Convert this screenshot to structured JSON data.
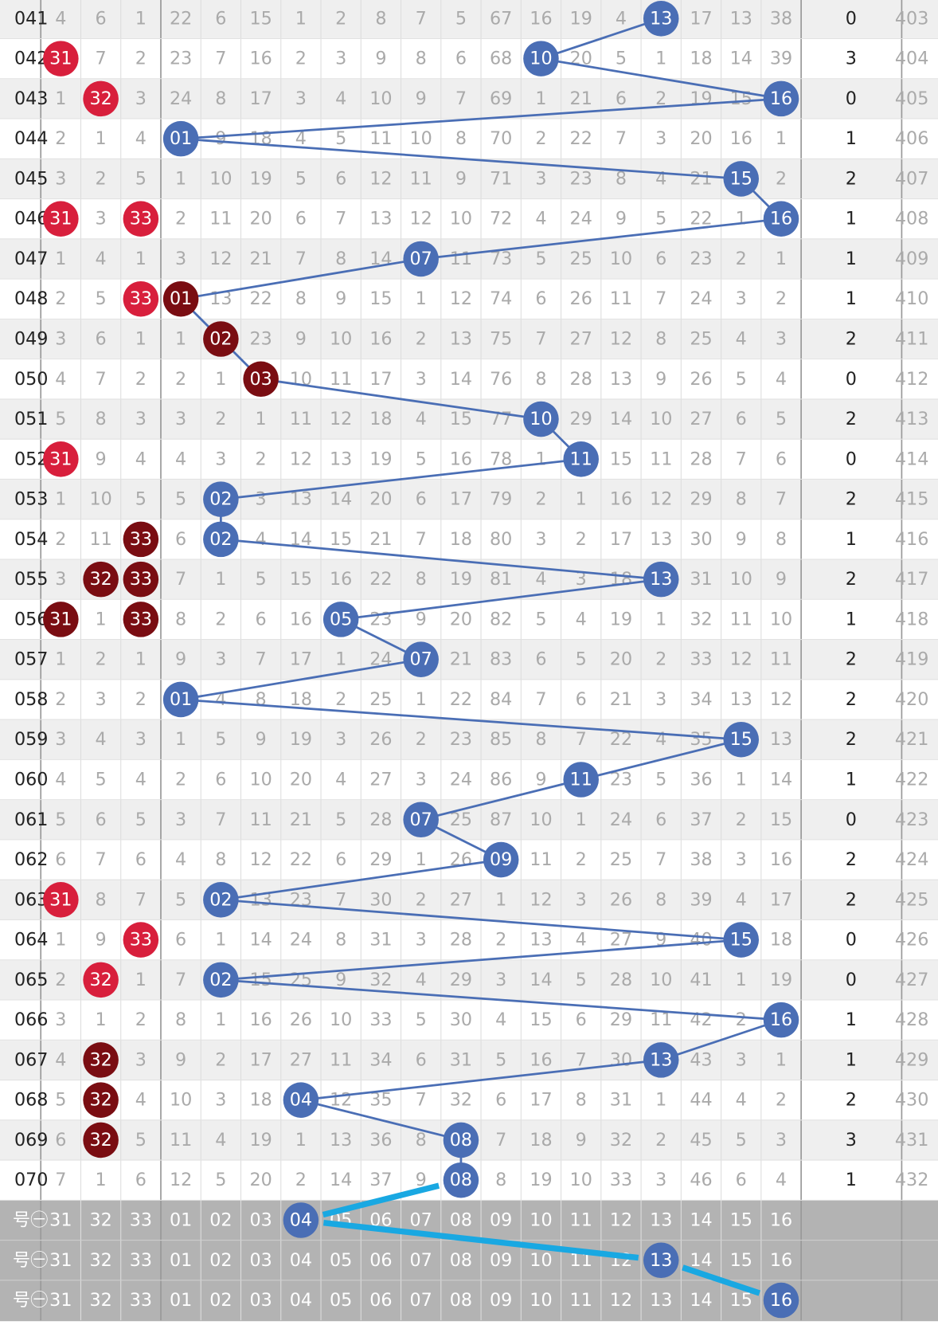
{
  "rows": [
    {
      "period": "041",
      "front": [
        "4",
        "6",
        "1"
      ],
      "back": [
        "22",
        "6",
        "15",
        "1",
        "2",
        "8",
        "7",
        "5",
        "67",
        "16",
        "19",
        "4",
        {
          "text": "13",
          "color": "#4a6eb5"
        },
        "17",
        "13",
        "38"
      ],
      "count": "0",
      "tail": "403"
    },
    {
      "period": "042",
      "front": [
        {
          "text": "31",
          "color": "#d81f3c"
        },
        "7",
        "2"
      ],
      "back": [
        "23",
        "7",
        "16",
        "2",
        "3",
        "9",
        "8",
        "6",
        "68",
        {
          "text": "10",
          "color": "#4a6eb5"
        },
        "20",
        "5",
        "1",
        "18",
        "14",
        "39"
      ],
      "count": "3",
      "tail": "404"
    },
    {
      "period": "043",
      "front": [
        "1",
        {
          "text": "32",
          "color": "#d81f3c"
        },
        "3"
      ],
      "back": [
        "24",
        "8",
        "17",
        "3",
        "4",
        "10",
        "9",
        "7",
        "69",
        "1",
        "21",
        "6",
        "2",
        "19",
        "15",
        {
          "text": "16",
          "color": "#4a6eb5"
        }
      ],
      "count": "0",
      "tail": "405"
    },
    {
      "period": "044",
      "front": [
        "2",
        "1",
        "4"
      ],
      "back": [
        {
          "text": "01",
          "color": "#4a6eb5"
        },
        "9",
        "18",
        "4",
        "5",
        "11",
        "10",
        "8",
        "70",
        "2",
        "22",
        "7",
        "3",
        "20",
        "16",
        "1"
      ],
      "count": "1",
      "tail": "406"
    },
    {
      "period": "045",
      "front": [
        "3",
        "2",
        "5"
      ],
      "back": [
        "1",
        "10",
        "19",
        "5",
        "6",
        "12",
        "11",
        "9",
        "71",
        "3",
        "23",
        "8",
        "4",
        "21",
        {
          "text": "15",
          "color": "#4a6eb5"
        },
        "2"
      ],
      "count": "2",
      "tail": "407"
    },
    {
      "period": "046",
      "front": [
        {
          "text": "31",
          "color": "#d81f3c"
        },
        "3",
        {
          "text": "33",
          "color": "#d81f3c"
        }
      ],
      "back": [
        "2",
        "11",
        "20",
        "6",
        "7",
        "13",
        "12",
        "10",
        "72",
        "4",
        "24",
        "9",
        "5",
        "22",
        "1",
        {
          "text": "16",
          "color": "#4a6eb5"
        }
      ],
      "count": "1",
      "tail": "408"
    },
    {
      "period": "047",
      "front": [
        "1",
        "4",
        "1"
      ],
      "back": [
        "3",
        "12",
        "21",
        "7",
        "8",
        "14",
        {
          "text": "07",
          "color": "#4a6eb5"
        },
        "11",
        "73",
        "5",
        "25",
        "10",
        "6",
        "23",
        "2",
        "1"
      ],
      "count": "1",
      "tail": "409"
    },
    {
      "period": "048",
      "front": [
        "2",
        "5",
        {
          "text": "33",
          "color": "#d81f3c"
        }
      ],
      "back": [
        {
          "text": "01",
          "color": "#7a0d12"
        },
        "13",
        "22",
        "8",
        "9",
        "15",
        "1",
        "12",
        "74",
        "6",
        "26",
        "11",
        "7",
        "24",
        "3",
        "2"
      ],
      "count": "1",
      "tail": "410"
    },
    {
      "period": "049",
      "front": [
        "3",
        "6",
        "1"
      ],
      "back": [
        "1",
        {
          "text": "02",
          "color": "#7a0d12"
        },
        "23",
        "9",
        "10",
        "16",
        "2",
        "13",
        "75",
        "7",
        "27",
        "12",
        "8",
        "25",
        "4",
        "3"
      ],
      "count": "2",
      "tail": "411"
    },
    {
      "period": "050",
      "front": [
        "4",
        "7",
        "2"
      ],
      "back": [
        "2",
        "1",
        {
          "text": "03",
          "color": "#7a0d12"
        },
        "10",
        "11",
        "17",
        "3",
        "14",
        "76",
        "8",
        "28",
        "13",
        "9",
        "26",
        "5",
        "4"
      ],
      "count": "0",
      "tail": "412"
    },
    {
      "period": "051",
      "front": [
        "5",
        "8",
        "3"
      ],
      "back": [
        "3",
        "2",
        "1",
        "11",
        "12",
        "18",
        "4",
        "15",
        "77",
        {
          "text": "10",
          "color": "#4a6eb5"
        },
        "29",
        "14",
        "10",
        "27",
        "6",
        "5"
      ],
      "count": "2",
      "tail": "413"
    },
    {
      "period": "052",
      "front": [
        {
          "text": "31",
          "color": "#d81f3c"
        },
        "9",
        "4"
      ],
      "back": [
        "4",
        "3",
        "2",
        "12",
        "13",
        "19",
        "5",
        "16",
        "78",
        "1",
        {
          "text": "11",
          "color": "#4a6eb5"
        },
        "15",
        "11",
        "28",
        "7",
        "6"
      ],
      "count": "0",
      "tail": "414"
    },
    {
      "period": "053",
      "front": [
        "1",
        "10",
        "5"
      ],
      "back": [
        "5",
        {
          "text": "02",
          "color": "#4a6eb5"
        },
        "3",
        "13",
        "14",
        "20",
        "6",
        "17",
        "79",
        "2",
        "1",
        "16",
        "12",
        "29",
        "8",
        "7"
      ],
      "count": "2",
      "tail": "415"
    },
    {
      "period": "054",
      "front": [
        "2",
        "11",
        {
          "text": "33",
          "color": "#7a0d12"
        }
      ],
      "back": [
        "6",
        {
          "text": "02",
          "color": "#4a6eb5"
        },
        "4",
        "14",
        "15",
        "21",
        "7",
        "18",
        "80",
        "3",
        "2",
        "17",
        "13",
        "30",
        "9",
        "8"
      ],
      "count": "1",
      "tail": "416"
    },
    {
      "period": "055",
      "front": [
        "3",
        {
          "text": "32",
          "color": "#7a0d12"
        },
        {
          "text": "33",
          "color": "#7a0d12"
        }
      ],
      "back": [
        "7",
        "1",
        "5",
        "15",
        "16",
        "22",
        "8",
        "19",
        "81",
        "4",
        "3",
        "18",
        {
          "text": "13",
          "color": "#4a6eb5"
        },
        "31",
        "10",
        "9"
      ],
      "count": "2",
      "tail": "417"
    },
    {
      "period": "056",
      "front": [
        {
          "text": "31",
          "color": "#7a0d12"
        },
        "1",
        {
          "text": "33",
          "color": "#7a0d12"
        }
      ],
      "back": [
        "8",
        "2",
        "6",
        "16",
        {
          "text": "05",
          "color": "#4a6eb5"
        },
        "23",
        "9",
        "20",
        "82",
        "5",
        "4",
        "19",
        "1",
        "32",
        "11",
        "10"
      ],
      "count": "1",
      "tail": "418"
    },
    {
      "period": "057",
      "front": [
        "1",
        "2",
        "1"
      ],
      "back": [
        "9",
        "3",
        "7",
        "17",
        "1",
        "24",
        {
          "text": "07",
          "color": "#4a6eb5"
        },
        "21",
        "83",
        "6",
        "5",
        "20",
        "2",
        "33",
        "12",
        "11"
      ],
      "count": "2",
      "tail": "419"
    },
    {
      "period": "058",
      "front": [
        "2",
        "3",
        "2"
      ],
      "back": [
        {
          "text": "01",
          "color": "#4a6eb5"
        },
        "4",
        "8",
        "18",
        "2",
        "25",
        "1",
        "22",
        "84",
        "7",
        "6",
        "21",
        "3",
        "34",
        "13",
        "12"
      ],
      "count": "2",
      "tail": "420"
    },
    {
      "period": "059",
      "front": [
        "3",
        "4",
        "3"
      ],
      "back": [
        "1",
        "5",
        "9",
        "19",
        "3",
        "26",
        "2",
        "23",
        "85",
        "8",
        "7",
        "22",
        "4",
        "35",
        {
          "text": "15",
          "color": "#4a6eb5"
        },
        "13"
      ],
      "count": "2",
      "tail": "421"
    },
    {
      "period": "060",
      "front": [
        "4",
        "5",
        "4"
      ],
      "back": [
        "2",
        "6",
        "10",
        "20",
        "4",
        "27",
        "3",
        "24",
        "86",
        "9",
        {
          "text": "11",
          "color": "#4a6eb5"
        },
        "23",
        "5",
        "36",
        "1",
        "14"
      ],
      "count": "1",
      "tail": "422"
    },
    {
      "period": "061",
      "front": [
        "5",
        "6",
        "5"
      ],
      "back": [
        "3",
        "7",
        "11",
        "21",
        "5",
        "28",
        {
          "text": "07",
          "color": "#4a6eb5"
        },
        "25",
        "87",
        "10",
        "1",
        "24",
        "6",
        "37",
        "2",
        "15"
      ],
      "count": "0",
      "tail": "423"
    },
    {
      "period": "062",
      "front": [
        "6",
        "7",
        "6"
      ],
      "back": [
        "4",
        "8",
        "12",
        "22",
        "6",
        "29",
        "1",
        "26",
        {
          "text": "09",
          "color": "#4a6eb5"
        },
        "11",
        "2",
        "25",
        "7",
        "38",
        "3",
        "16"
      ],
      "count": "2",
      "tail": "424"
    },
    {
      "period": "063",
      "front": [
        {
          "text": "31",
          "color": "#d81f3c"
        },
        "8",
        "7"
      ],
      "back": [
        "5",
        {
          "text": "02",
          "color": "#4a6eb5"
        },
        "13",
        "23",
        "7",
        "30",
        "2",
        "27",
        "1",
        "12",
        "3",
        "26",
        "8",
        "39",
        "4",
        "17"
      ],
      "count": "2",
      "tail": "425"
    },
    {
      "period": "064",
      "front": [
        "1",
        "9",
        {
          "text": "33",
          "color": "#d81f3c"
        }
      ],
      "back": [
        "6",
        "1",
        "14",
        "24",
        "8",
        "31",
        "3",
        "28",
        "2",
        "13",
        "4",
        "27",
        "9",
        "40",
        {
          "text": "15",
          "color": "#4a6eb5"
        },
        "18"
      ],
      "count": "0",
      "tail": "426"
    },
    {
      "period": "065",
      "front": [
        "2",
        {
          "text": "32",
          "color": "#d81f3c"
        },
        "1"
      ],
      "back": [
        "7",
        {
          "text": "02",
          "color": "#4a6eb5"
        },
        "15",
        "25",
        "9",
        "32",
        "4",
        "29",
        "3",
        "14",
        "5",
        "28",
        "10",
        "41",
        "1",
        "19"
      ],
      "count": "0",
      "tail": "427"
    },
    {
      "period": "066",
      "front": [
        "3",
        "1",
        "2"
      ],
      "back": [
        "8",
        "1",
        "16",
        "26",
        "10",
        "33",
        "5",
        "30",
        "4",
        "15",
        "6",
        "29",
        "11",
        "42",
        "2",
        {
          "text": "16",
          "color": "#4a6eb5"
        }
      ],
      "count": "1",
      "tail": "428"
    },
    {
      "period": "067",
      "front": [
        "4",
        {
          "text": "32",
          "color": "#7a0d12"
        },
        "3"
      ],
      "back": [
        "9",
        "2",
        "17",
        "27",
        "11",
        "34",
        "6",
        "31",
        "5",
        "16",
        "7",
        "30",
        {
          "text": "13",
          "color": "#4a6eb5"
        },
        "43",
        "3",
        "1"
      ],
      "count": "1",
      "tail": "429"
    },
    {
      "period": "068",
      "front": [
        "5",
        {
          "text": "32",
          "color": "#7a0d12"
        },
        "4"
      ],
      "back": [
        "10",
        "3",
        "18",
        {
          "text": "04",
          "color": "#4a6eb5"
        },
        "12",
        "35",
        "7",
        "32",
        "6",
        "17",
        "8",
        "31",
        "1",
        "44",
        "4",
        "2"
      ],
      "count": "2",
      "tail": "430"
    },
    {
      "period": "069",
      "front": [
        "6",
        {
          "text": "32",
          "color": "#7a0d12"
        },
        "5"
      ],
      "back": [
        "11",
        "4",
        "19",
        "1",
        "13",
        "36",
        "8",
        {
          "text": "08",
          "color": "#4a6eb5"
        },
        "7",
        "18",
        "9",
        "32",
        "2",
        "45",
        "5",
        "3"
      ],
      "count": "3",
      "tail": "431"
    },
    {
      "period": "070",
      "front": [
        "7",
        "1",
        "6"
      ],
      "back": [
        "12",
        "5",
        "20",
        "2",
        "14",
        "37",
        "9",
        {
          "text": "08",
          "color": "#4a6eb5"
        },
        "8",
        "19",
        "10",
        "33",
        "3",
        "46",
        "6",
        "4"
      ],
      "count": "1",
      "tail": "432"
    }
  ],
  "footer": [
    {
      "label": "号㊀",
      "cells": [
        "31",
        "32",
        "33",
        "01",
        "02",
        "03",
        {
          "text": "04",
          "color": "#4a6eb5"
        },
        "05",
        "06",
        "07",
        "08",
        "09",
        "10",
        "11",
        "12",
        "13",
        "14",
        "15",
        "16"
      ]
    },
    {
      "label": "号㊀",
      "cells": [
        "31",
        "32",
        "33",
        "01",
        "02",
        "03",
        "04",
        "05",
        "06",
        "07",
        "08",
        "09",
        "10",
        "11",
        "12",
        {
          "text": "13",
          "color": "#4a6eb5"
        },
        "14",
        "15",
        "16"
      ]
    },
    {
      "label": "号㊀",
      "cells": [
        "31",
        "32",
        "33",
        "01",
        "02",
        "03",
        "04",
        "05",
        "06",
        "07",
        "08",
        "09",
        "10",
        "11",
        "12",
        "13",
        "14",
        "15",
        {
          "text": "16",
          "color": "#4a6eb5"
        }
      ]
    }
  ]
}
